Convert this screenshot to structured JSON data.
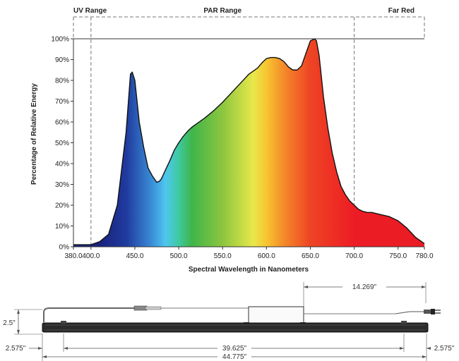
{
  "chart_data": {
    "type": "area",
    "title": "",
    "xlabel": "Spectral Wavelength in Nanometers",
    "ylabel": "Percentage of Relative Energy",
    "xlim": [
      380,
      780
    ],
    "ylim": [
      0,
      100
    ],
    "x_ticks": [
      {
        "value": 380,
        "label": "380.0"
      },
      {
        "value": 400,
        "label": "400.0"
      },
      {
        "value": 450,
        "label": "450.0"
      },
      {
        "value": 500,
        "label": "500.0"
      },
      {
        "value": 550,
        "label": "550.0"
      },
      {
        "value": 600,
        "label": "600.0"
      },
      {
        "value": 650,
        "label": "650.0"
      },
      {
        "value": 700,
        "label": "700.0"
      },
      {
        "value": 750,
        "label": "750.0"
      },
      {
        "value": 780,
        "label": "780.0"
      }
    ],
    "y_ticks": [
      {
        "value": 0,
        "label": "0%"
      },
      {
        "value": 10,
        "label": "10%"
      },
      {
        "value": 20,
        "label": "20%"
      },
      {
        "value": 30,
        "label": "30%"
      },
      {
        "value": 40,
        "label": "40%"
      },
      {
        "value": 50,
        "label": "50%"
      },
      {
        "value": 60,
        "label": "60%"
      },
      {
        "value": 70,
        "label": "70%"
      },
      {
        "value": 80,
        "label": "80%"
      },
      {
        "value": 90,
        "label": "90%"
      },
      {
        "value": 100,
        "label": "100%"
      }
    ],
    "grid": false,
    "regions": [
      {
        "label": "UV Range",
        "start": 380,
        "end": 400
      },
      {
        "label": "PAR Range",
        "start": 400,
        "end": 700
      },
      {
        "label": "Far Red",
        "start": 700,
        "end": 780
      }
    ],
    "series": [
      {
        "x": [
          380,
          390,
          400,
          410,
          420,
          430,
          440,
          445,
          447,
          450,
          455,
          460,
          465,
          470,
          475,
          478,
          480,
          485,
          490,
          495,
          500,
          505,
          510,
          515,
          520,
          530,
          540,
          550,
          560,
          570,
          580,
          590,
          595,
          600,
          605,
          610,
          615,
          620,
          625,
          630,
          635,
          640,
          645,
          650,
          655,
          657,
          660,
          665,
          670,
          675,
          680,
          685,
          690,
          695,
          700,
          705,
          710,
          715,
          720,
          730,
          740,
          750,
          760,
          770,
          780
        ],
        "y": [
          1,
          1,
          1,
          2.5,
          6,
          20,
          55,
          83,
          84,
          80,
          60,
          48,
          38,
          34,
          31,
          31.5,
          32.5,
          37,
          41.5,
          46.5,
          50,
          53,
          55.5,
          57.5,
          59,
          62,
          65.5,
          69.5,
          74,
          78.5,
          83,
          86,
          88.5,
          90.5,
          91,
          91,
          90.5,
          89,
          86.5,
          85,
          85,
          87,
          93,
          99,
          100,
          99,
          92,
          72,
          57,
          45,
          36,
          29,
          25,
          22,
          20,
          18,
          17,
          16.5,
          16.5,
          15.5,
          14.5,
          12.5,
          9,
          4.5,
          1.5
        ]
      }
    ],
    "color_stops": [
      {
        "wavelength": 410,
        "color": "#1a237e"
      },
      {
        "wavelength": 440,
        "color": "#1f3a9e"
      },
      {
        "wavelength": 470,
        "color": "#3b8fd9"
      },
      {
        "wavelength": 485,
        "color": "#4ec7ee"
      },
      {
        "wavelength": 500,
        "color": "#3ec9a0"
      },
      {
        "wavelength": 515,
        "color": "#3fb54a"
      },
      {
        "wavelength": 550,
        "color": "#8cc63f"
      },
      {
        "wavelength": 585,
        "color": "#e8e84a"
      },
      {
        "wavelength": 600,
        "color": "#f7c531"
      },
      {
        "wavelength": 620,
        "color": "#f48a2a"
      },
      {
        "wavelength": 650,
        "color": "#ee4424"
      },
      {
        "wavelength": 700,
        "color": "#ed1c24"
      },
      {
        "wavelength": 780,
        "color": "#ea1c24"
      }
    ]
  },
  "dimensions": {
    "height": "2.5\"",
    "left_offset": "2.575\"",
    "mount_spacing": "39.625\"",
    "right_offset": "2.575\"",
    "overall_length": "44.775\"",
    "cord_length": "14.269\""
  }
}
